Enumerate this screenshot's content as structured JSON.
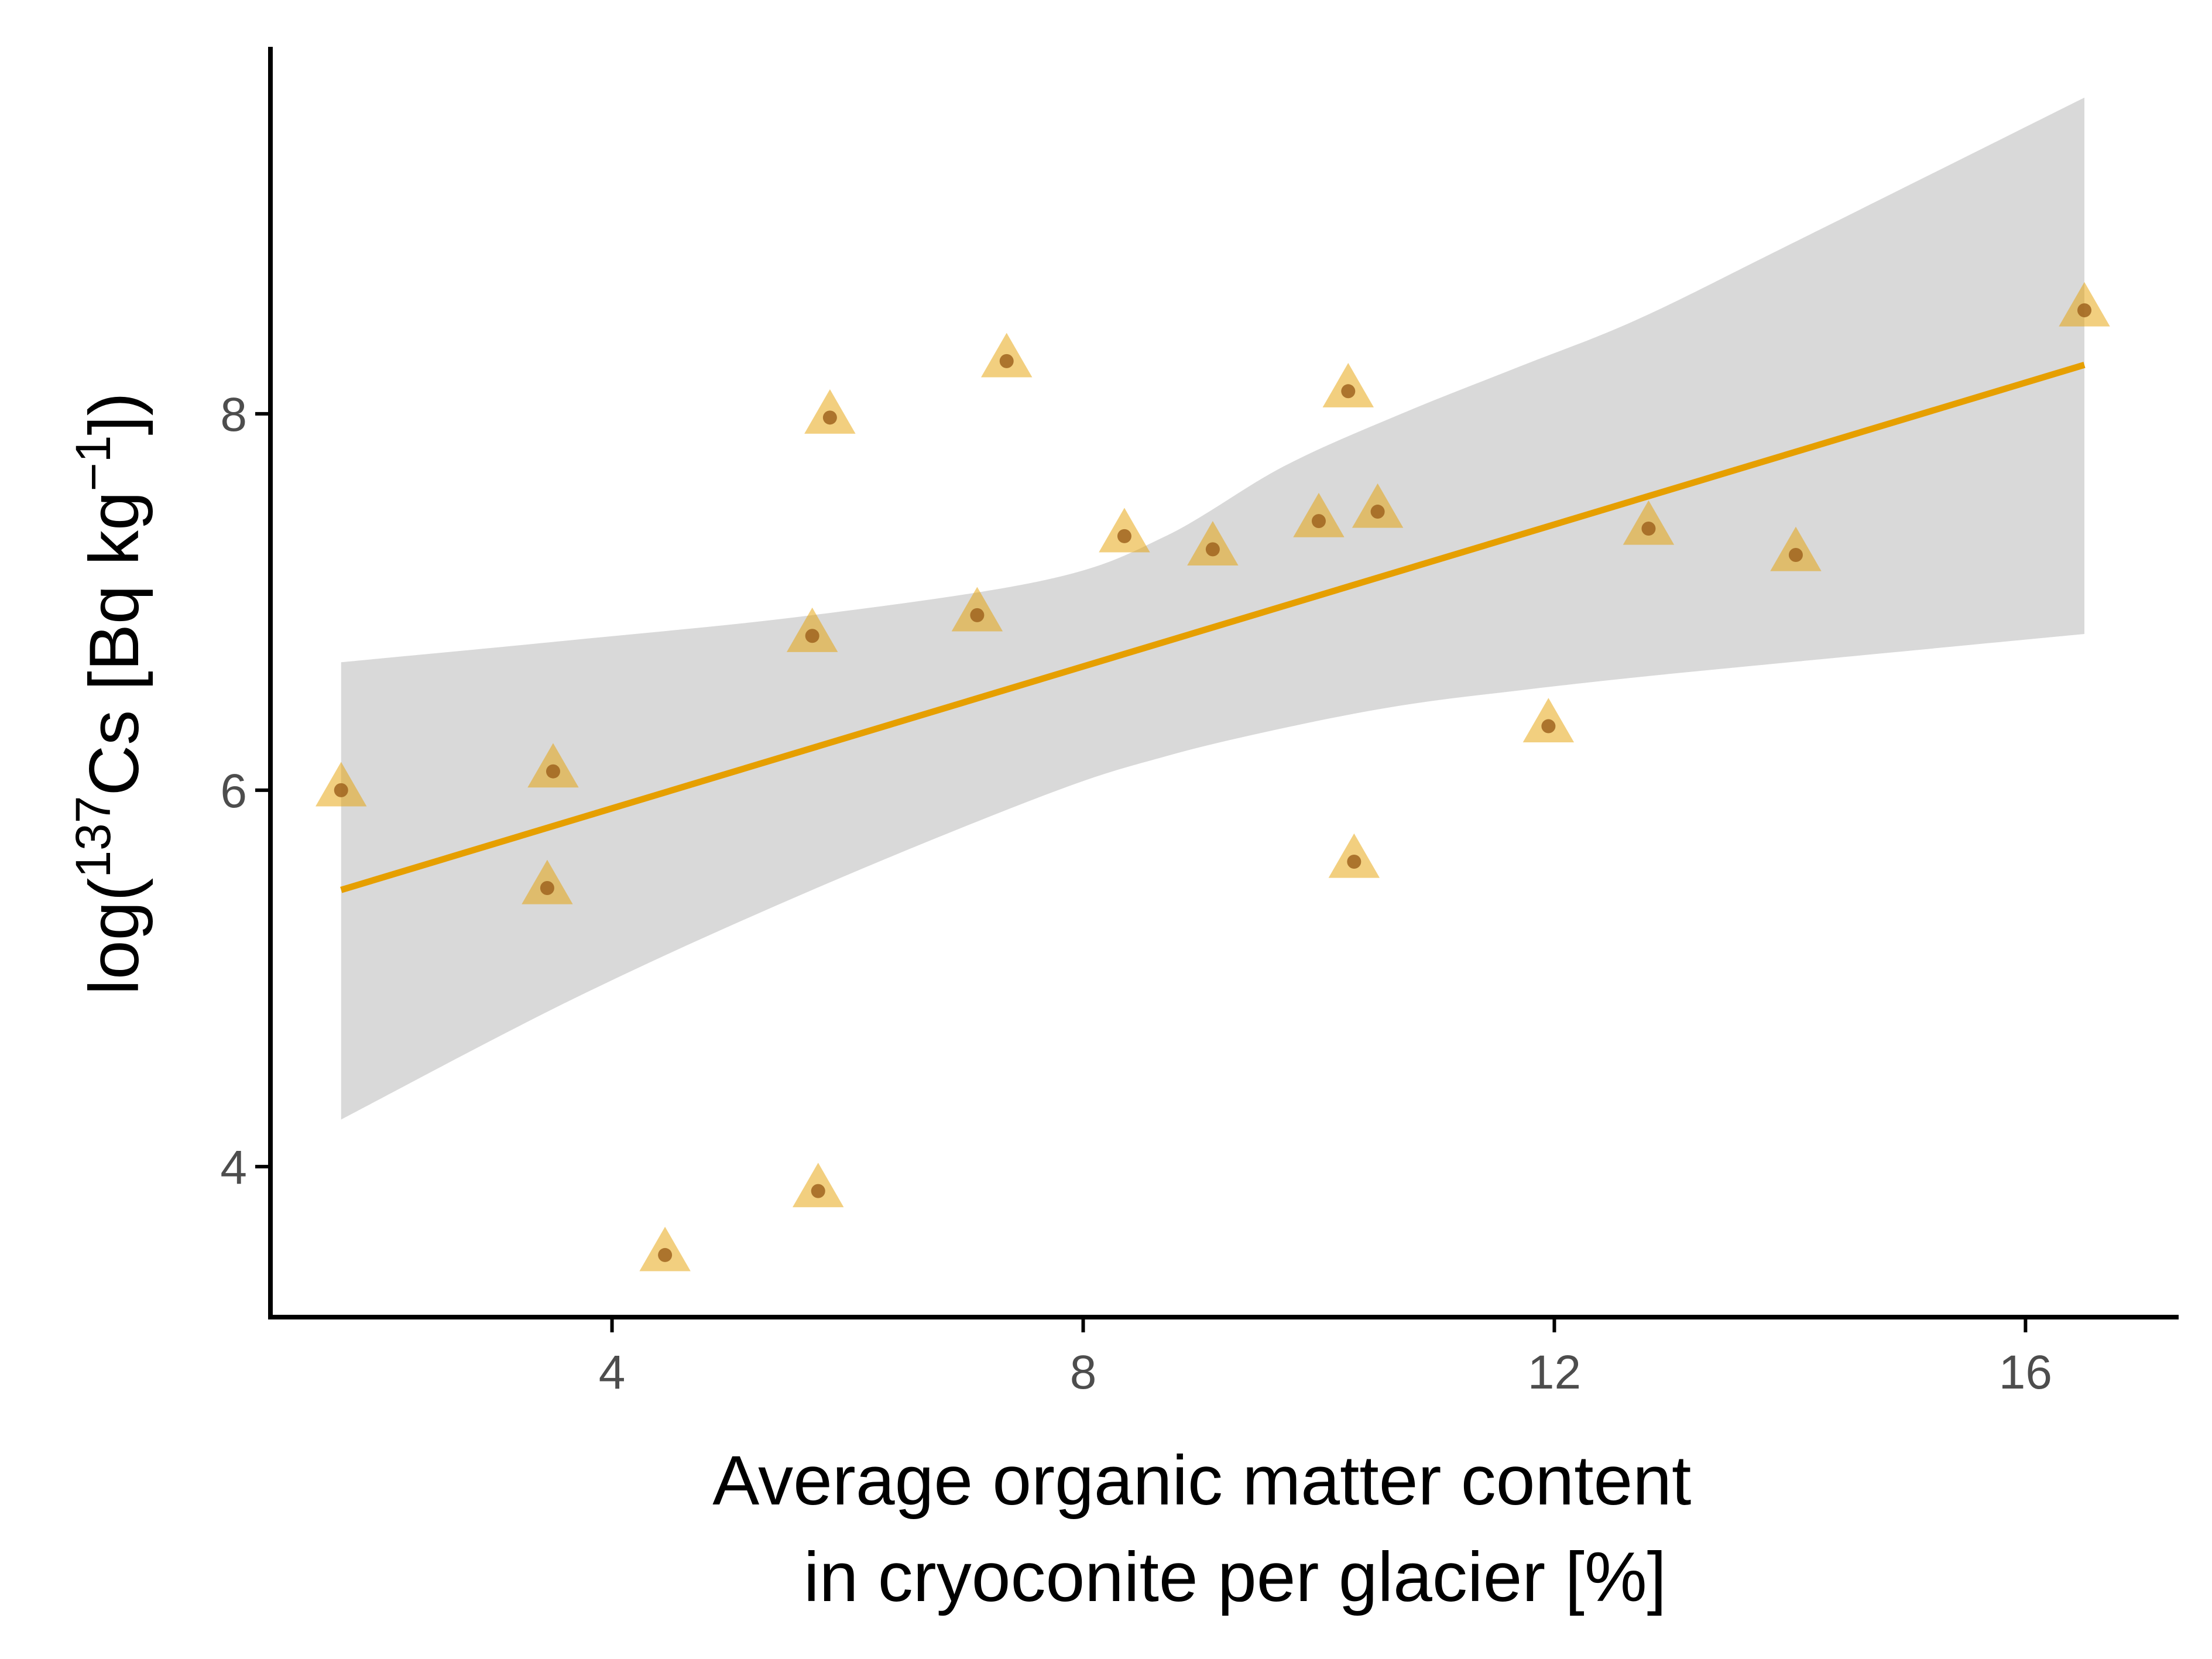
{
  "chart_data": {
    "type": "scatter",
    "xlabel_lines": [
      "Average organic matter content",
      "in cryoconite per glacier [%]"
    ],
    "ylabel": {
      "prefix": "log(",
      "sup1": "137",
      "mid": "Cs [Bq kg",
      "sup2": "−1",
      "suffix": "])"
    },
    "xlim": [
      1.1,
      17.3
    ],
    "ylim": [
      3.2,
      9.95
    ],
    "x_ticks": [
      4,
      8,
      12,
      16
    ],
    "y_ticks": [
      4,
      6,
      8
    ],
    "grid": false,
    "legend": "none",
    "colors": {
      "fit_line": "#E69F00",
      "ribbon": "#d9d9d9",
      "marker_fill": "#E69F00",
      "marker_dot": "#a0641e",
      "axis": "#000000",
      "tick_label": "#4d4d4d"
    },
    "points": [
      {
        "x": 1.7,
        "y": 6.0
      },
      {
        "x": 3.5,
        "y": 6.1
      },
      {
        "x": 3.45,
        "y": 5.48
      },
      {
        "x": 4.45,
        "y": 3.53
      },
      {
        "x": 5.7,
        "y": 6.82
      },
      {
        "x": 5.75,
        "y": 3.87
      },
      {
        "x": 5.85,
        "y": 7.98
      },
      {
        "x": 7.1,
        "y": 6.93
      },
      {
        "x": 7.35,
        "y": 8.28
      },
      {
        "x": 8.35,
        "y": 7.35
      },
      {
        "x": 9.1,
        "y": 7.28
      },
      {
        "x": 10.0,
        "y": 7.43
      },
      {
        "x": 10.25,
        "y": 8.12
      },
      {
        "x": 10.3,
        "y": 5.62
      },
      {
        "x": 10.5,
        "y": 7.48
      },
      {
        "x": 11.95,
        "y": 6.34
      },
      {
        "x": 12.8,
        "y": 7.39
      },
      {
        "x": 14.05,
        "y": 7.25
      },
      {
        "x": 16.5,
        "y": 8.55
      }
    ],
    "fit": {
      "x": [
        1.7,
        16.5
      ],
      "y": [
        5.47,
        8.26
      ]
    },
    "ribbon": {
      "x": [
        1.7,
        3.7,
        5.7,
        7.7,
        8.7,
        9.7,
        10.7,
        11.7,
        12.7,
        14.0,
        16.5
      ],
      "lower": [
        4.25,
        4.9,
        5.47,
        5.98,
        6.18,
        6.33,
        6.45,
        6.53,
        6.6,
        6.68,
        6.83
      ],
      "upper": [
        6.68,
        6.8,
        6.93,
        7.12,
        7.35,
        7.72,
        8.0,
        8.25,
        8.5,
        8.9,
        9.68
      ]
    }
  }
}
